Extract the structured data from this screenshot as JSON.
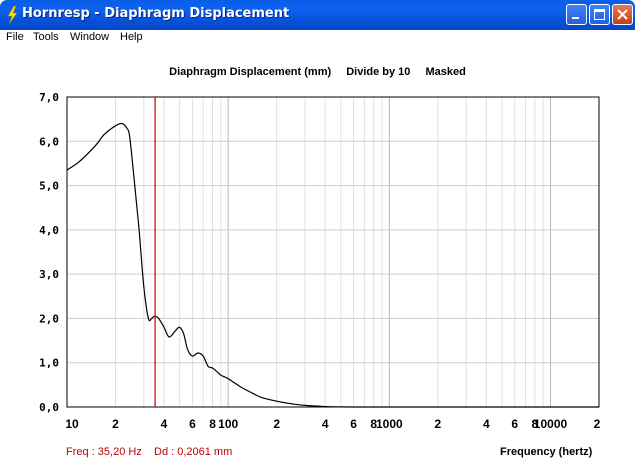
{
  "window": {
    "title": "Hornresp - Diaphragm Displacement"
  },
  "menu": [
    "File",
    "Tools",
    "Window",
    "Help"
  ],
  "plot": {
    "title_parts": [
      "Diaphragm Displacement (mm)",
      "Divide by 10",
      "Masked"
    ]
  },
  "status": {
    "freq": "Freq : 35,20 Hz",
    "dd": "Dd : 0,2061 mm"
  },
  "chart_data": {
    "type": "line",
    "xlabel": "Frequency (hertz)",
    "ylabel": "",
    "xscale": "log",
    "xlim": [
      10,
      20000
    ],
    "ylim": [
      0,
      7
    ],
    "y_ticks": [
      "0,0",
      "1,0",
      "2,0",
      "3,0",
      "4,0",
      "5,0",
      "6,0",
      "7,0"
    ],
    "x_ticks": [
      "10",
      "2",
      "4",
      "6",
      "8",
      "100",
      "2",
      "4",
      "6",
      "8",
      "1000",
      "2",
      "4",
      "6",
      "8",
      "10000",
      "2"
    ],
    "marker": {
      "x": 35.2,
      "color": "#d00000"
    },
    "grid": true,
    "series": [
      {
        "color": "#000000",
        "x": [
          10,
          12,
          15,
          17,
          20,
          22,
          23.5,
          24.5,
          26,
          28,
          30,
          32,
          33.5,
          35,
          37,
          40,
          43,
          47,
          50,
          53,
          56,
          60,
          65,
          70,
          75,
          80,
          85,
          90,
          95,
          100,
          110,
          120,
          140,
          160,
          200,
          250,
          300,
          400,
          500,
          600,
          700,
          1000,
          2000,
          5000,
          10000,
          20000
        ],
        "y": [
          5.35,
          5.55,
          5.9,
          6.15,
          6.35,
          6.4,
          6.3,
          6.1,
          5.2,
          4.0,
          2.7,
          2.0,
          2.0,
          2.05,
          2.0,
          1.8,
          1.58,
          1.72,
          1.8,
          1.65,
          1.3,
          1.15,
          1.22,
          1.15,
          0.92,
          0.88,
          0.8,
          0.72,
          0.68,
          0.64,
          0.54,
          0.45,
          0.32,
          0.22,
          0.13,
          0.07,
          0.035,
          0.01,
          0.003,
          0.0,
          0.0,
          0.0,
          0.0,
          0.0,
          0.0,
          0.0
        ]
      }
    ]
  }
}
